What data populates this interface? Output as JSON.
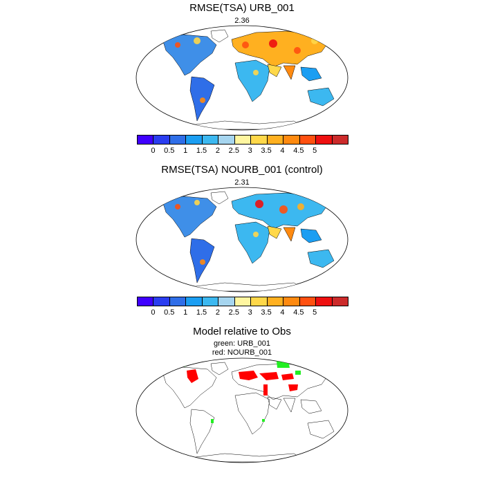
{
  "panel1": {
    "title": "RMSE(TSA) URB_001",
    "value": "2.36"
  },
  "panel2": {
    "title": "RMSE(TSA) NOURB_001 (control)",
    "value": "2.31"
  },
  "panel3": {
    "title": "Model relative to Obs",
    "legend_green": "green: URB_001",
    "legend_red": "red: NOURB_001"
  },
  "colorbar": {
    "colors": [
      "#3f00ff",
      "#2a3df0",
      "#2f6ee8",
      "#1b9ef2",
      "#3cb8f0",
      "#a6d5ef",
      "#fff6a0",
      "#ffd84a",
      "#ffb020",
      "#ff8a10",
      "#ff5010",
      "#ee1010",
      "#cc2b2b"
    ],
    "ticks": [
      "0",
      "0.5",
      "1",
      "1.5",
      "2",
      "2.5",
      "3",
      "3.5",
      "4",
      "4.5",
      "5"
    ]
  },
  "palette": {
    "ocean": "#ffffff",
    "coast": "#000000",
    "green": "#22ee22",
    "red": "#ff0000"
  }
}
